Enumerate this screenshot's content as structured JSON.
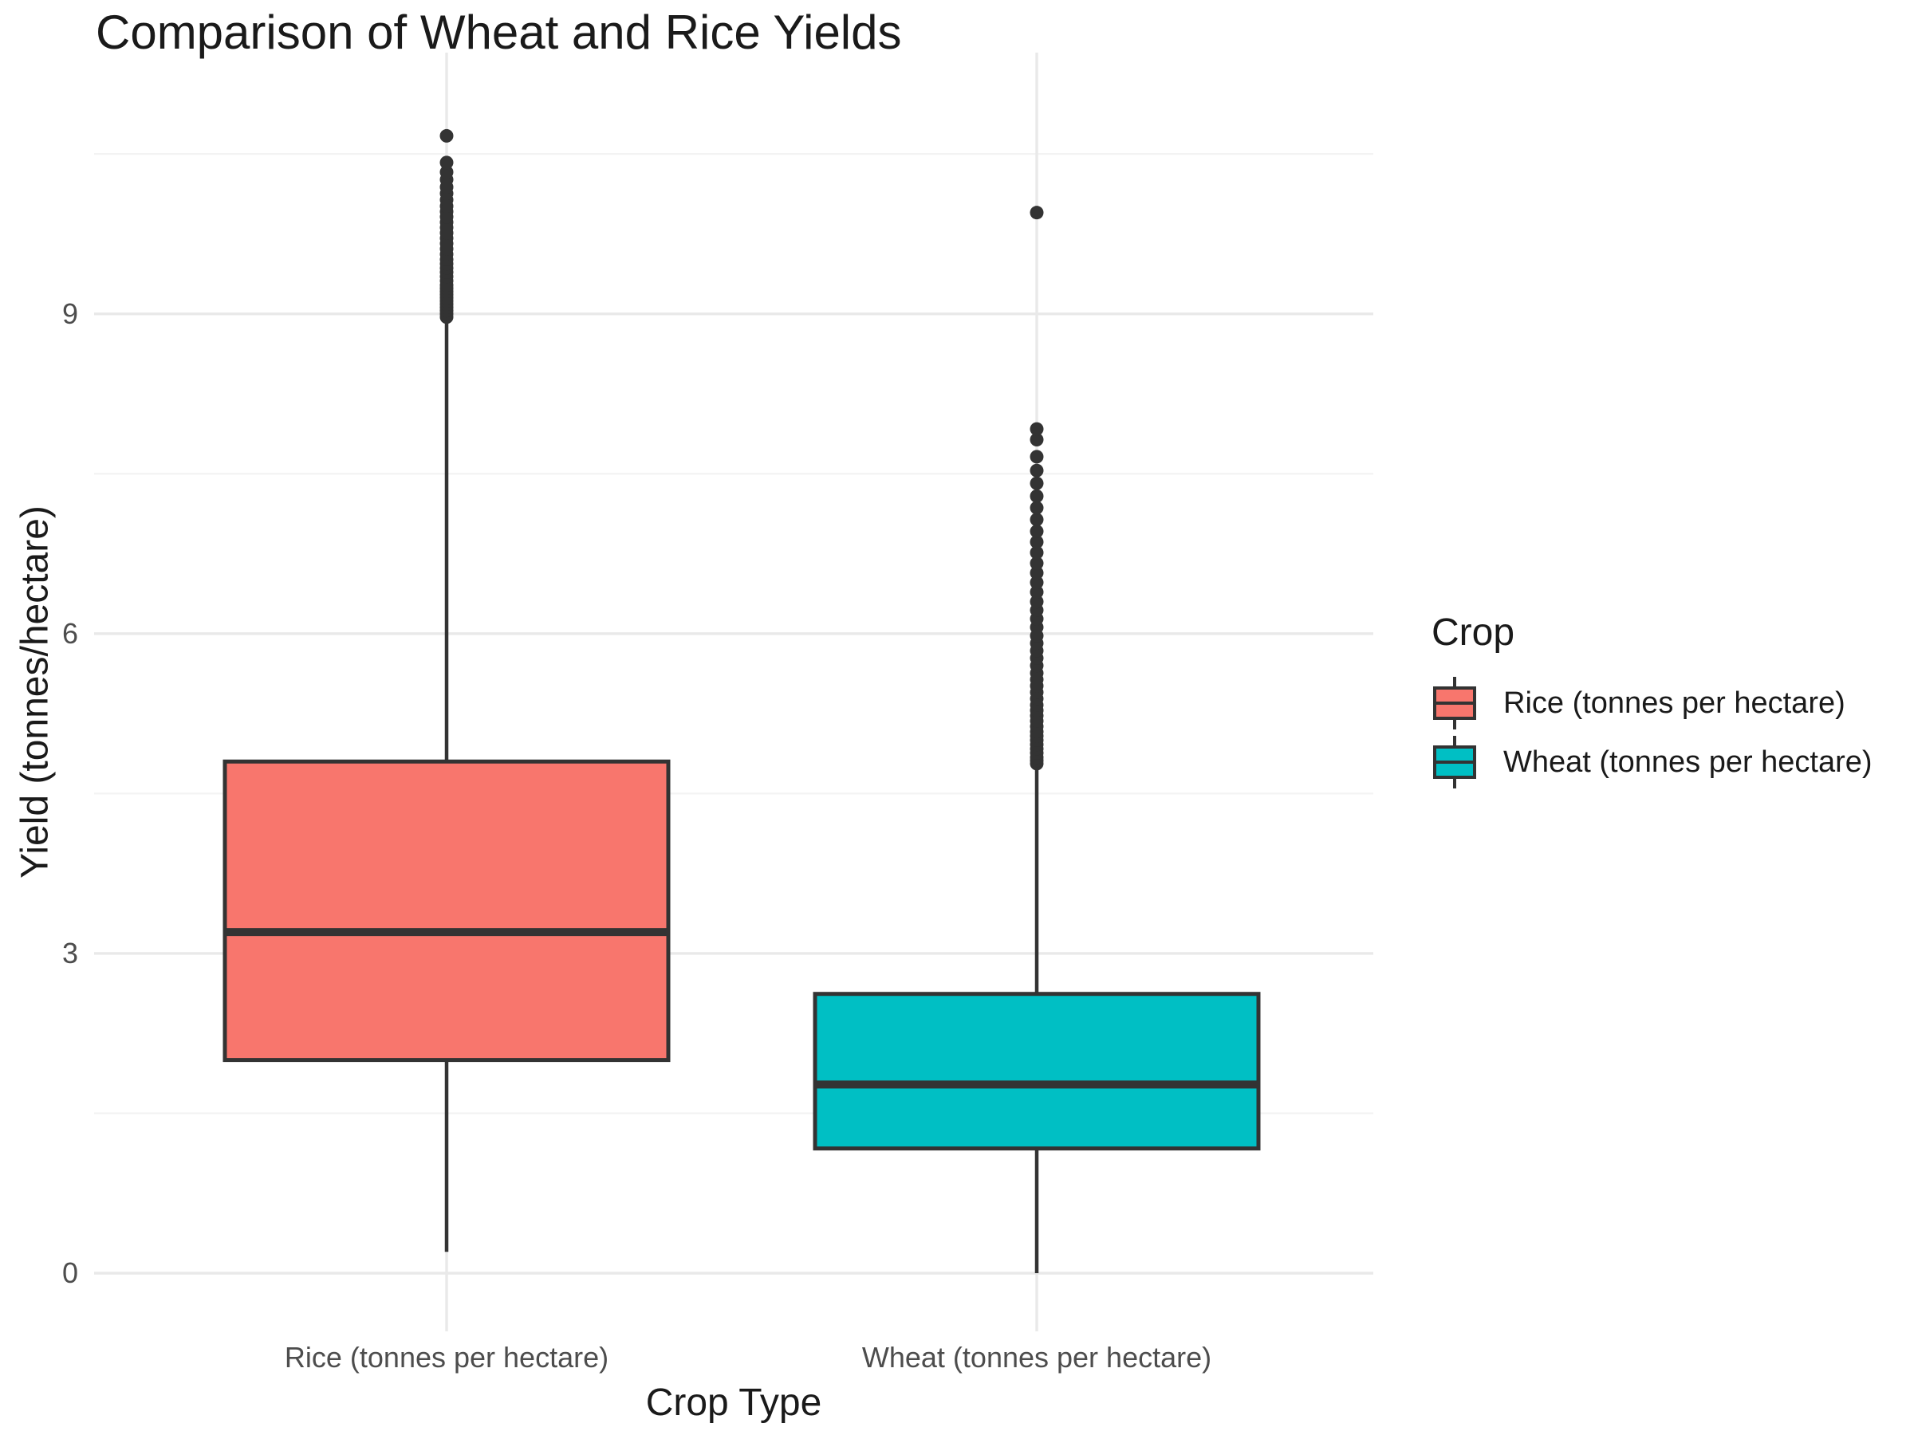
{
  "chart_data": {
    "type": "boxplot",
    "title": "Comparison of Wheat and Rice Yields",
    "xlabel": "Crop Type",
    "ylabel": "Yield (tonnes/hectare)",
    "categories": [
      "Rice (tonnes per hectare)",
      "Wheat (tonnes per hectare)"
    ],
    "yticks": [
      "0",
      "3",
      "6",
      "9"
    ],
    "ytick_values": [
      0,
      3,
      6,
      9
    ],
    "yticks_minor": [
      1.5,
      4.5,
      7.5,
      10.5
    ],
    "ylim": [
      -0.55,
      11.35
    ],
    "grid": "on",
    "legend_position": "right",
    "legend": {
      "title": "Crop",
      "entries": [
        {
          "label": "Rice (tonnes per hectare)",
          "color": "#F8766D"
        },
        {
          "label": "Wheat (tonnes per hectare)",
          "color": "#00BFC4"
        }
      ]
    },
    "colors": {
      "outline": "#333333",
      "grid_major": "#E9E9E9",
      "grid_minor": "#F3F3F3",
      "tick_text": "#4D4D4D",
      "title_text": "#1A1A1A",
      "background": "#FFFFFF"
    },
    "series": [
      {
        "name": "Rice (tonnes per hectare)",
        "fill": "#F8766D",
        "stats": {
          "whisker_low": 0.2,
          "q1": 2.0,
          "median": 3.2,
          "q3": 4.8,
          "whisker_high": 8.95
        },
        "outliers": [
          8.97,
          9.0,
          9.03,
          9.06,
          9.09,
          9.12,
          9.15,
          9.18,
          9.21,
          9.24,
          9.27,
          9.31,
          9.35,
          9.39,
          9.43,
          9.47,
          9.51,
          9.56,
          9.61,
          9.66,
          9.71,
          9.76,
          9.81,
          9.86,
          9.91,
          9.96,
          10.01,
          10.07,
          10.13,
          10.19,
          10.26,
          10.33,
          10.42,
          10.67
        ]
      },
      {
        "name": "Wheat (tonnes per hectare)",
        "fill": "#00BFC4",
        "stats": {
          "whisker_low": 0.0,
          "q1": 1.17,
          "median": 1.77,
          "q3": 2.62,
          "whisker_high": 4.73
        },
        "outliers": [
          4.78,
          4.81,
          4.84,
          4.88,
          4.92,
          4.96,
          5.0,
          5.04,
          5.08,
          5.13,
          5.18,
          5.23,
          5.28,
          5.33,
          5.39,
          5.45,
          5.51,
          5.57,
          5.63,
          5.7,
          5.77,
          5.84,
          5.91,
          5.98,
          6.06,
          6.14,
          6.22,
          6.3,
          6.39,
          6.48,
          6.57,
          6.66,
          6.76,
          6.86,
          6.96,
          7.07,
          7.18,
          7.29,
          7.41,
          7.53,
          7.66,
          7.82,
          7.92,
          9.95
        ]
      }
    ]
  }
}
